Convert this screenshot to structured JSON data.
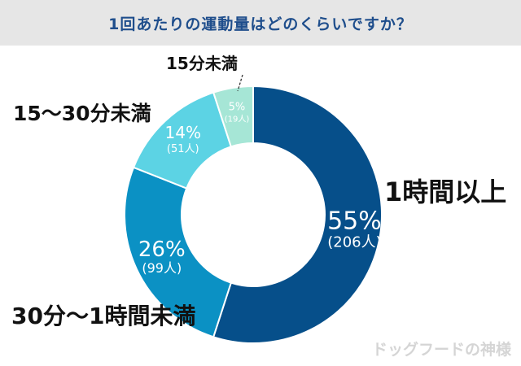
{
  "chart_data": {
    "type": "pie",
    "title": "1回あたりの運動量はどのくらいですか？",
    "categories": [
      "1時間以上",
      "30分〜1時間未満",
      "15〜30分未満",
      "15分未満"
    ],
    "values": [
      55,
      26,
      14,
      5
    ],
    "counts": [
      "(206人)",
      "(99人)",
      "(51人)",
      "(19人)"
    ],
    "percent_labels": [
      "55%",
      "26%",
      "14%",
      "5%"
    ],
    "colors": [
      "#064f8a",
      "#0b91c4",
      "#5cd3e4",
      "#a6e6d6"
    ],
    "legend": "category labels placed beside each slice",
    "donut": true
  },
  "watermark": "ドッグフードの神様"
}
